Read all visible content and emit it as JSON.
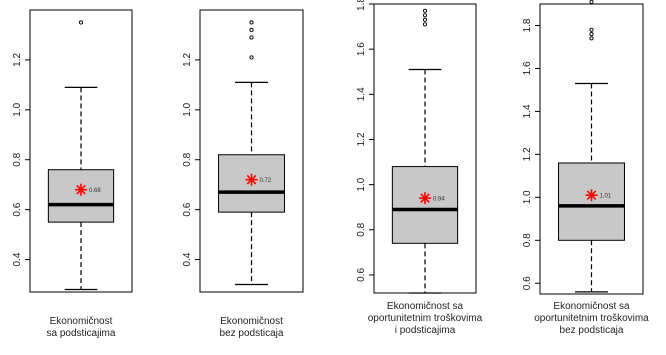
{
  "chart_data": [
    {
      "type": "box",
      "caption": [
        "Ekonomičnost",
        "sa podsticajima"
      ],
      "ylim": [
        0.27,
        1.4
      ],
      "yticks": [
        0.4,
        0.6,
        0.8,
        1.0,
        1.2
      ],
      "yticklabels": [
        "0.4",
        "0.6",
        "0.8",
        "1.0",
        "1.2"
      ],
      "whisker_low": 0.28,
      "q1": 0.55,
      "median": 0.62,
      "q3": 0.76,
      "whisker_high": 1.09,
      "outliers": [
        1.35
      ],
      "mean": 0.68,
      "mean_label": "0.68"
    },
    {
      "type": "box",
      "caption": [
        "Ekonomičnost",
        "bez podsticaja"
      ],
      "ylim": [
        0.27,
        1.4
      ],
      "yticks": [
        0.4,
        0.6,
        0.8,
        1.0,
        1.2
      ],
      "yticklabels": [
        "0.4",
        "0.6",
        "0.8",
        "1.0",
        "1.2"
      ],
      "whisker_low": 0.3,
      "q1": 0.59,
      "median": 0.67,
      "q3": 0.82,
      "whisker_high": 1.11,
      "outliers": [
        1.21,
        1.29,
        1.32,
        1.35
      ],
      "mean": 0.72,
      "mean_label": "0.72"
    },
    {
      "type": "box",
      "caption": [
        "Ekonomičnost sa",
        "oportunitetnim troškovima",
        "i podsticajima"
      ],
      "ylim": [
        0.52,
        1.8
      ],
      "yticks": [
        0.6,
        0.8,
        1.0,
        1.2,
        1.4,
        1.6,
        1.8
      ],
      "yticklabels": [
        "0.6",
        "0.8",
        "1.0",
        "1.2",
        "1.4",
        "1.6",
        "1.8"
      ],
      "whisker_low": 0.52,
      "q1": 0.74,
      "median": 0.89,
      "q3": 1.08,
      "whisker_high": 1.51,
      "outliers": [
        1.71,
        1.73,
        1.75,
        1.77
      ],
      "mean": 0.94,
      "mean_label": "0.94"
    },
    {
      "type": "box",
      "caption": [
        "Ekonomičnost sa",
        "oportunitetnim troškovima",
        "bez podsticaja"
      ],
      "ylim": [
        0.55,
        1.9
      ],
      "yticks": [
        0.6,
        0.8,
        1.0,
        1.2,
        1.4,
        1.6,
        1.8
      ],
      "yticklabels": [
        "0.6",
        "0.8",
        "1.0",
        "1.2",
        "1.4",
        "1.6",
        "1.8"
      ],
      "whisker_low": 0.56,
      "q1": 0.8,
      "median": 0.96,
      "q3": 1.16,
      "whisker_high": 1.53,
      "outliers": [
        1.74,
        1.76,
        1.78,
        1.91
      ],
      "mean": 1.01,
      "mean_label": "1.01"
    }
  ],
  "colors": {
    "box_fill": "#c8c8c8",
    "mean_marker": "#ff0000",
    "lines": "#000000"
  }
}
